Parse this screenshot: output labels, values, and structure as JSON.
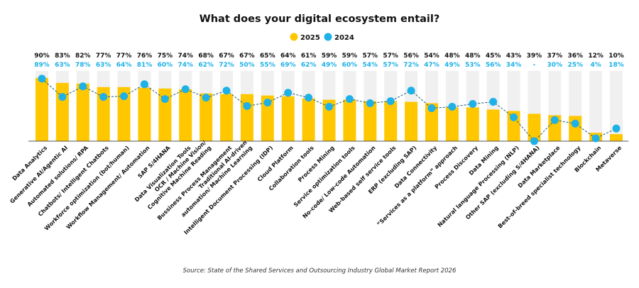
{
  "chart_data": {
    "type": "bar",
    "title": "What does your digital ecosystem entail?",
    "source": "Source: State of the Shared Services and Outsourcing Industry Global Market Report 2026",
    "legend_position": "top",
    "ylim": [
      0,
      100
    ],
    "grid": false,
    "categories": [
      "Data Analytics",
      "Generative AI/Agentic AI",
      "Automated solutions/ RPA",
      "Chatbots/ Intelligent Chatbots",
      "Workforce optimization (bot/human)",
      "Workflow Management/ Automation",
      "SAP S/4HANA",
      "Data Visualization Tools",
      [
        "OCR / Machine Vision/",
        "Cognitive Machine Reading"
      ],
      "Bussiness Process Management",
      [
        "Traditional AI-driven",
        "automation/ Machine Learning"
      ],
      "Intelligent Document Processing (IDP)",
      "Cloud Platform",
      "Collaboration tools",
      "Process Mining",
      "Service optimization tools",
      "No-code/ Low-code Automation",
      "Web-based self service tools",
      "ERP (excluding SAP)",
      "Data Connectivity",
      "“Services as a platform” approach",
      "Process Discovery",
      "Data Mining",
      "Natural language Processing (NLP)",
      "Other SAP (excluding S/4HANA)",
      "Data Marketplace",
      "Best-of-breed specialist technology",
      "Blockchain",
      "Metaverse"
    ],
    "series": [
      {
        "name": "2025",
        "kind": "bar",
        "color": "#FFC700",
        "values": [
          90,
          83,
          82,
          77,
          77,
          76,
          75,
          74,
          68,
          67,
          67,
          65,
          64,
          61,
          59,
          59,
          57,
          57,
          56,
          54,
          48,
          48,
          45,
          43,
          39,
          37,
          36,
          12,
          10
        ]
      },
      {
        "name": "2024",
        "kind": "line-dashed-markers",
        "color": "#1EB1E7",
        "line_color": "#1D5E78",
        "values": [
          89,
          63,
          78,
          63,
          64,
          81,
          60,
          74,
          62,
          72,
          50,
          55,
          69,
          62,
          49,
          60,
          54,
          57,
          72,
          47,
          49,
          53,
          56,
          34,
          null,
          30,
          25,
          4,
          18
        ],
        "missing_label": "-"
      }
    ],
    "background_bar_color": "#F0F0F0"
  }
}
